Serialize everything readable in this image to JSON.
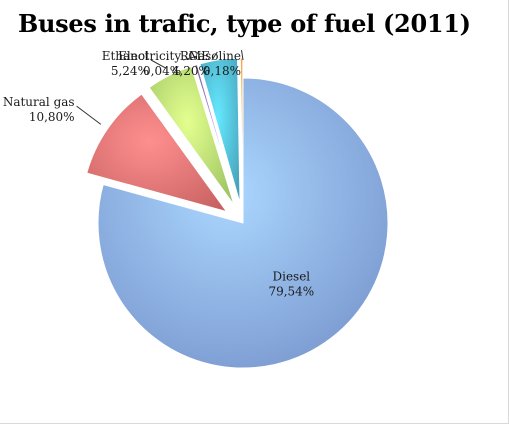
{
  "chart_data": {
    "type": "pie",
    "title": "Buses in trafic, type of fuel (2011)",
    "slices": [
      {
        "name": "Diesel",
        "label": "79,54%",
        "value": 79.54,
        "color": "#7f9fdc"
      },
      {
        "name": "Natural gas",
        "label": "10,80%",
        "value": 10.8,
        "color": "#d96a6a"
      },
      {
        "name": "Ethanol",
        "label": "5,24%",
        "value": 5.24,
        "color": "#a9d36a"
      },
      {
        "name": "Electricity",
        "label": "0,04%",
        "value": 0.04,
        "color": "#8064a2"
      },
      {
        "name": "RME",
        "label": "4,20%",
        "value": 4.2,
        "color": "#4bacc6"
      },
      {
        "name": "Gasoline",
        "label": "0,18%",
        "value": 0.18,
        "color": "#f79646"
      }
    ],
    "legend": "none"
  }
}
